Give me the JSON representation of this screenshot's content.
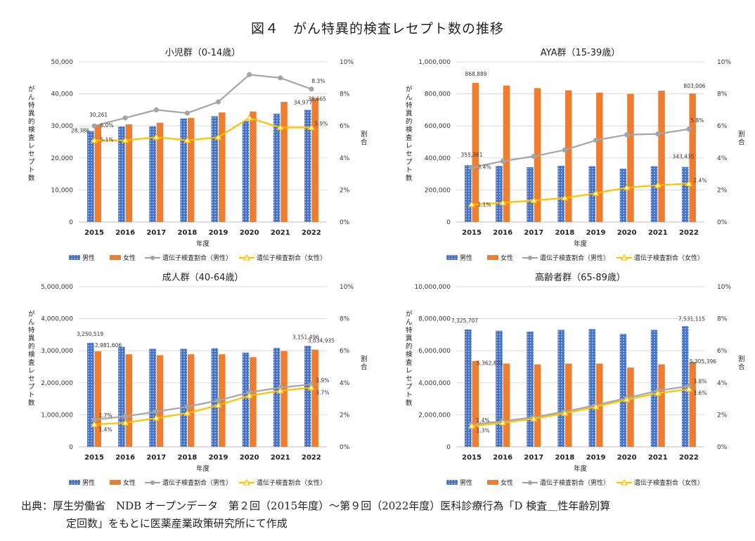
{
  "figure_title": "図４　がん特異的検査レセプト数の推移",
  "source_line1": "出典：厚生労働省　NDB オープンデータ　第２回（2015年度）～第９回（2022年度）医科診療行為「D 検査＿性年齢別算",
  "source_line2": "定回数」をもとに医薬産業政策研究所にて作成",
  "colors": {
    "male_bar": "#4472C4",
    "female_bar": "#ED7D31",
    "male_line": "#A5A5A5",
    "female_line": "#FFC000"
  },
  "chart_data": [
    {
      "type": "bar",
      "title": "小児群（0-14歳）",
      "xlabel": "年度",
      "ylabel": "がん特異的検査レセプト数",
      "y2label": "割合",
      "categories": [
        "2015",
        "2016",
        "2017",
        "2018",
        "2019",
        "2020",
        "2021",
        "2022"
      ],
      "ylim": [
        0,
        50000
      ],
      "yticks": [
        "0",
        "10,000",
        "20,000",
        "30,000",
        "40,000",
        "50,000"
      ],
      "y2lim": [
        0,
        10
      ],
      "y2ticks": [
        "0%",
        "2%",
        "4%",
        "6%",
        "8%",
        "10%"
      ],
      "series": [
        {
          "name": "男性",
          "kind": "bar",
          "values": [
            28386,
            29800,
            29900,
            32300,
            33000,
            31500,
            33800,
            34977
          ]
        },
        {
          "name": "女性",
          "kind": "bar",
          "values": [
            30261,
            30500,
            31000,
            32500,
            34200,
            34500,
            37500,
            38665
          ]
        },
        {
          "name": "遺伝子検査割合（男性）",
          "kind": "line",
          "values": [
            6.0,
            6.5,
            7.0,
            6.8,
            7.5,
            9.2,
            9.0,
            8.3
          ]
        },
        {
          "name": "遺伝子検査割合（女性）",
          "kind": "line",
          "values": [
            5.1,
            5.1,
            5.3,
            5.1,
            5.3,
            6.5,
            5.9,
            5.9
          ]
        }
      ],
      "labels": [
        {
          "text": "28,386",
          "cat": 0,
          "axis": "y",
          "value": 28386,
          "dx": -20,
          "dy": 2
        },
        {
          "text": "30,261",
          "cat": 0,
          "axis": "y",
          "value": 30261,
          "dx": 6,
          "dy": -12
        },
        {
          "text": "6.0%",
          "cat": 0,
          "axis": "y2",
          "value": 6.0,
          "dx": 18,
          "dy": 2
        },
        {
          "text": "5.1%",
          "cat": 0,
          "axis": "y2",
          "value": 5.1,
          "dx": 18,
          "dy": 2
        },
        {
          "text": "34,977",
          "cat": 7,
          "axis": "y",
          "value": 34977,
          "dx": -12,
          "dy": -8
        },
        {
          "text": "38,665",
          "cat": 7,
          "axis": "y",
          "value": 38665,
          "dx": 8,
          "dy": 4
        },
        {
          "text": "8.3%",
          "cat": 7,
          "axis": "y2",
          "value": 8.3,
          "dx": 10,
          "dy": -9
        },
        {
          "text": "5.9%",
          "cat": 7,
          "axis": "y2",
          "value": 5.9,
          "dx": 14,
          "dy": -3
        }
      ],
      "legend": "bottom"
    },
    {
      "type": "bar",
      "title": "AYA群（15-39歳）",
      "xlabel": "年度",
      "ylabel": "がん特異的検査レセプト数",
      "y2label": "割合",
      "categories": [
        "2015",
        "2016",
        "2017",
        "2018",
        "2019",
        "2020",
        "2021",
        "2022"
      ],
      "ylim": [
        0,
        1000000
      ],
      "yticks": [
        "0",
        "200,000",
        "400,000",
        "600,000",
        "800,000",
        "1,000,000"
      ],
      "y2lim": [
        0,
        10
      ],
      "y2ticks": [
        "0%",
        "2%",
        "4%",
        "6%",
        "8%",
        "10%"
      ],
      "series": [
        {
          "name": "男性",
          "kind": "bar",
          "values": [
            355361,
            350000,
            342000,
            352000,
            348000,
            333000,
            348000,
            343435
          ]
        },
        {
          "name": "女性",
          "kind": "bar",
          "values": [
            868889,
            852000,
            836000,
            822000,
            808000,
            800000,
            820000,
            803006
          ]
        },
        {
          "name": "遺伝子検査割合（男性）",
          "kind": "line",
          "values": [
            3.4,
            3.8,
            4.1,
            4.5,
            5.1,
            5.45,
            5.5,
            5.8
          ]
        },
        {
          "name": "遺伝子検査割合（女性）",
          "kind": "line",
          "values": [
            1.1,
            1.2,
            1.35,
            1.5,
            1.8,
            2.15,
            2.3,
            2.4
          ]
        }
      ],
      "labels": [
        {
          "text": "868,889",
          "cat": 0,
          "axis": "y",
          "value": 868889,
          "dx": 6,
          "dy": -10
        },
        {
          "text": "355,361",
          "cat": 0,
          "axis": "y",
          "value": 355361,
          "dx": 0,
          "dy": -12
        },
        {
          "text": "3.4%",
          "cat": 0,
          "axis": "y2",
          "value": 3.4,
          "dx": 18,
          "dy": 2
        },
        {
          "text": "1.1%",
          "cat": 0,
          "axis": "y2",
          "value": 1.1,
          "dx": 18,
          "dy": 3
        },
        {
          "text": "803,006",
          "cat": 7,
          "axis": "y",
          "value": 803006,
          "dx": 8,
          "dy": -8
        },
        {
          "text": "343,435",
          "cat": 7,
          "axis": "y",
          "value": 343435,
          "dx": -8,
          "dy": -12
        },
        {
          "text": "5.8%",
          "cat": 7,
          "axis": "y2",
          "value": 5.8,
          "dx": 12,
          "dy": -10
        },
        {
          "text": "2.4%",
          "cat": 7,
          "axis": "y2",
          "value": 2.4,
          "dx": 16,
          "dy": -2
        }
      ],
      "legend": "bottom"
    },
    {
      "type": "bar",
      "title": "成人群（40-64歳）",
      "xlabel": "年度",
      "ylabel": "がん特異的検査レセプト数",
      "y2label": "割合",
      "categories": [
        "2015",
        "2016",
        "2017",
        "2018",
        "2019",
        "2020",
        "2021",
        "2022"
      ],
      "ylim": [
        0,
        5000000
      ],
      "yticks": [
        "0",
        "1,000,000",
        "2,000,000",
        "3,000,000",
        "4,000,000",
        "5,000,000"
      ],
      "y2lim": [
        0,
        10
      ],
      "y2ticks": [
        "0%",
        "2%",
        "4%",
        "6%",
        "8%",
        "10%"
      ],
      "series": [
        {
          "name": "男性",
          "kind": "bar",
          "values": [
            3250519,
            3120000,
            3060000,
            3060000,
            3080000,
            2940000,
            3090000,
            3151496
          ]
        },
        {
          "name": "女性",
          "kind": "bar",
          "values": [
            2981606,
            2890000,
            2860000,
            2890000,
            2890000,
            2800000,
            2990000,
            3034935
          ]
        },
        {
          "name": "遺伝子検査割合（男性）",
          "kind": "line",
          "values": [
            1.7,
            1.9,
            2.2,
            2.5,
            2.9,
            3.4,
            3.7,
            3.9
          ]
        },
        {
          "name": "遺伝子検査割合（女性）",
          "kind": "line",
          "values": [
            1.4,
            1.5,
            1.8,
            2.1,
            2.6,
            3.2,
            3.5,
            3.7
          ]
        }
      ],
      "labels": [
        {
          "text": "3,250,519",
          "cat": 0,
          "axis": "y",
          "value": 3250519,
          "dx": -6,
          "dy": -10
        },
        {
          "text": "2,981,606",
          "cat": 0,
          "axis": "y",
          "value": 2981606,
          "dx": 20,
          "dy": -6
        },
        {
          "text": "1.7%",
          "cat": 0,
          "axis": "y2",
          "value": 1.7,
          "dx": 16,
          "dy": -3
        },
        {
          "text": "1.4%",
          "cat": 0,
          "axis": "y2",
          "value": 1.4,
          "dx": 16,
          "dy": 10
        },
        {
          "text": "3,151,496",
          "cat": 7,
          "axis": "y",
          "value": 3151496,
          "dx": -8,
          "dy": -10
        },
        {
          "text": "3,034,935",
          "cat": 7,
          "axis": "y",
          "value": 3034935,
          "dx": 14,
          "dy": -10
        },
        {
          "text": "3.9%",
          "cat": 7,
          "axis": "y2",
          "value": 3.9,
          "dx": 16,
          "dy": -3
        },
        {
          "text": "3.7%",
          "cat": 7,
          "axis": "y2",
          "value": 3.7,
          "dx": 16,
          "dy": 10
        }
      ],
      "legend": "bottom"
    },
    {
      "type": "bar",
      "title": "高齢者群（65-89歳）",
      "xlabel": "年度",
      "ylabel": "がん特異的検査レセプト数",
      "y2label": "割合",
      "categories": [
        "2015",
        "2016",
        "2017",
        "2018",
        "2019",
        "2020",
        "2021",
        "2022"
      ],
      "ylim": [
        0,
        10000000
      ],
      "yticks": [
        "0",
        "2,000,000",
        "4,000,000",
        "6,000,000",
        "8,000,000",
        "10,000,000"
      ],
      "y2lim": [
        0,
        10
      ],
      "y2ticks": [
        "0%",
        "2%",
        "4%",
        "6%",
        "8%",
        "10%"
      ],
      "series": [
        {
          "name": "男性",
          "kind": "bar",
          "values": [
            7325707,
            7250000,
            7200000,
            7300000,
            7350000,
            7050000,
            7300000,
            7531115
          ]
        },
        {
          "name": "女性",
          "kind": "bar",
          "values": [
            5362831,
            5200000,
            5150000,
            5200000,
            5200000,
            4950000,
            5150000,
            5305396
          ]
        },
        {
          "name": "遺伝子検査割合（男性）",
          "kind": "line",
          "values": [
            1.4,
            1.6,
            1.85,
            2.2,
            2.6,
            3.05,
            3.5,
            3.8
          ]
        },
        {
          "name": "遺伝子検査割合（女性）",
          "kind": "line",
          "values": [
            1.3,
            1.5,
            1.75,
            2.1,
            2.5,
            2.95,
            3.35,
            3.6
          ]
        }
      ],
      "labels": [
        {
          "text": "7,325,707",
          "cat": 0,
          "axis": "y",
          "value": 7325707,
          "dx": -10,
          "dy": -10
        },
        {
          "text": "5,362,831",
          "cat": 0,
          "axis": "y",
          "value": 5362831,
          "dx": 26,
          "dy": 6
        },
        {
          "text": "1.4%",
          "cat": 0,
          "axis": "y2",
          "value": 1.4,
          "dx": 16,
          "dy": -3
        },
        {
          "text": "1.3%",
          "cat": 0,
          "axis": "y2",
          "value": 1.3,
          "dx": 16,
          "dy": 9
        },
        {
          "text": "7,531,115",
          "cat": 7,
          "axis": "y",
          "value": 7531115,
          "dx": 4,
          "dy": -8
        },
        {
          "text": "5,305,396",
          "cat": 7,
          "axis": "y",
          "value": 5305396,
          "dx": 20,
          "dy": 2
        },
        {
          "text": "3.8%",
          "cat": 7,
          "axis": "y2",
          "value": 3.8,
          "dx": 16,
          "dy": -4
        },
        {
          "text": "3.6%",
          "cat": 7,
          "axis": "y2",
          "value": 3.6,
          "dx": 16,
          "dy": 8
        }
      ],
      "legend": "bottom"
    }
  ]
}
